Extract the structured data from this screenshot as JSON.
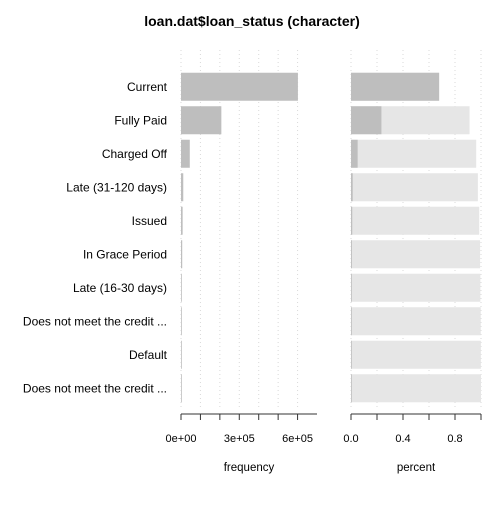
{
  "chart_data": {
    "type": "bar",
    "orientation": "horizontal",
    "title": "loan.dat$loan_status (character)",
    "categories": [
      "Current",
      "Fully Paid",
      "Charged Off",
      "Late (31-120 days)",
      "Issued",
      "In Grace Period",
      "Late (16-30 days)",
      "Does not meet the credit ...",
      "Default",
      "Does not meet the credit ..."
    ],
    "panels": [
      {
        "name": "frequency",
        "xlabel": "frequency",
        "xlim": [
          0,
          700000
        ],
        "ticks": [
          0,
          100000,
          200000,
          300000,
          400000,
          500000,
          600000
        ],
        "tick_labels": [
          "0e+00",
          "",
          "",
          "3e+05",
          "",
          "",
          "6e+05"
        ],
        "grid": true,
        "series": [
          {
            "values": [
              601779,
              207723,
              45248,
              11591,
              8460,
              6253,
              2357,
              1988,
              1219,
              761
            ]
          }
        ]
      },
      {
        "name": "percent",
        "xlabel": "percent",
        "xlim": [
          0,
          1
        ],
        "ticks": [
          0,
          0.2,
          0.4,
          0.6,
          0.8,
          1.0
        ],
        "tick_labels": [
          "0.0",
          "",
          "0.4",
          "",
          "0.8",
          ""
        ],
        "grid": true,
        "series": [
          {
            "name": "percent",
            "values": [
              0.678,
              0.234,
              0.051,
              0.013,
              0.0095,
              0.007,
              0.0027,
              0.0022,
              0.0014,
              0.0009
            ]
          },
          {
            "name": "cumulative",
            "values": [
              0.678,
              0.912,
              0.963,
              0.976,
              0.986,
              0.993,
              0.995,
              0.998,
              0.999,
              1.0
            ]
          }
        ]
      }
    ],
    "colors": {
      "bar": "#bebebe",
      "cumulative": "#e6e6e6",
      "grid": "#d9d9d9",
      "axis": "#333333"
    }
  }
}
